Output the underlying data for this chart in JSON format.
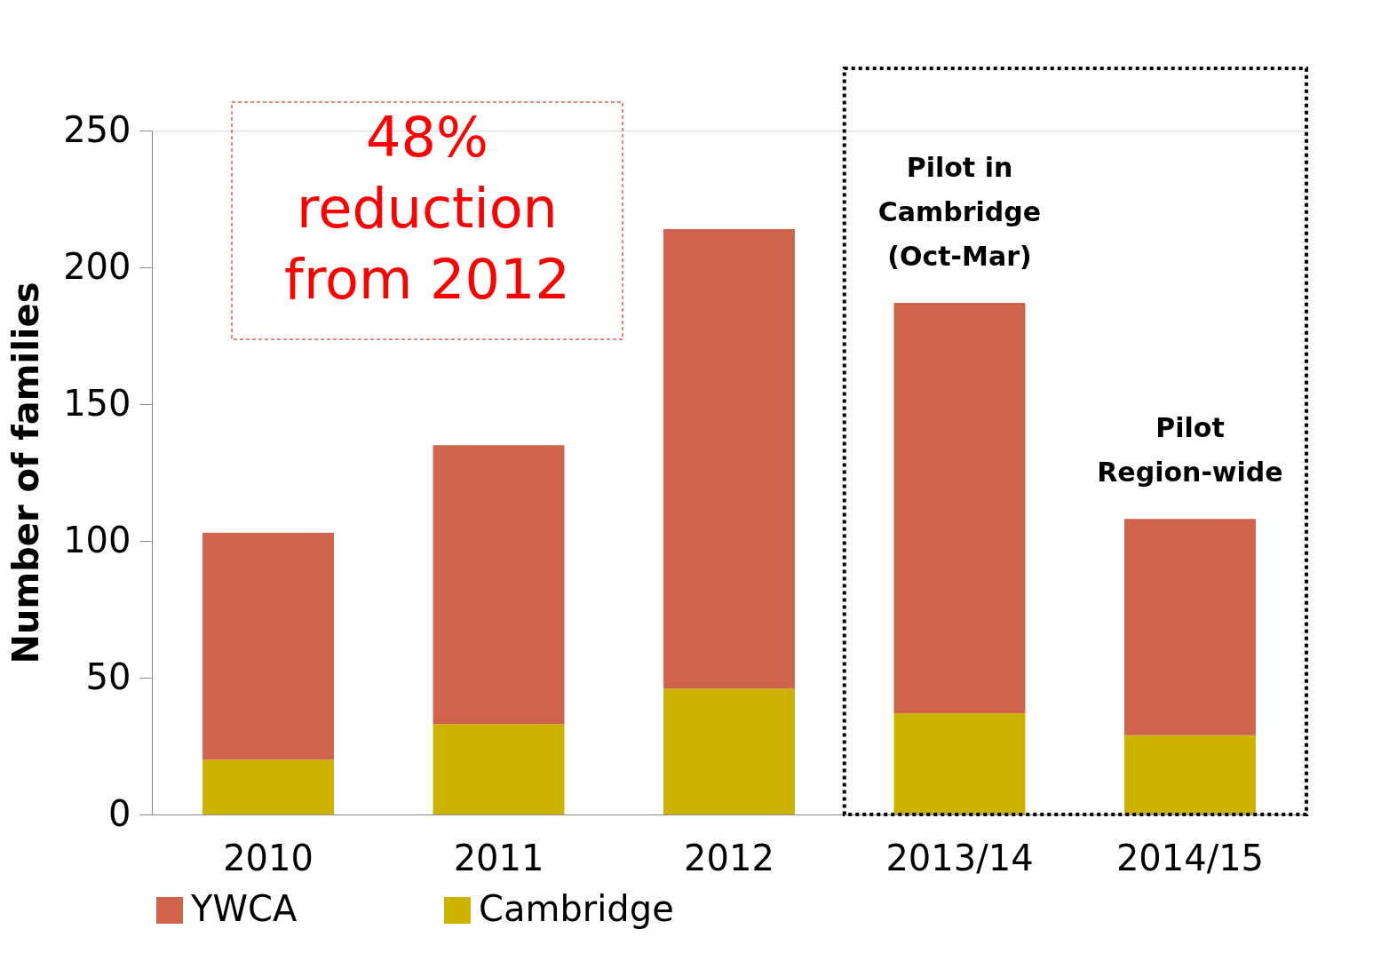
{
  "chart_data": {
    "type": "bar",
    "stacked": true,
    "ylabel": "Number of families",
    "categories": [
      "2010",
      "2011",
      "2012",
      "2013/14",
      "2014/15"
    ],
    "series": [
      {
        "name": "Cambridge",
        "color": "#cbb300",
        "values": [
          20,
          33,
          46,
          37,
          29
        ]
      },
      {
        "name": "YWCA",
        "color": "#d0634b",
        "values": [
          83,
          102,
          168,
          150,
          79
        ]
      }
    ],
    "ylim": [
      0,
      250
    ],
    "yticks": [
      0,
      50,
      100,
      150,
      200,
      250
    ],
    "grid": false,
    "legend": "bottom",
    "annotations": [
      "48%\nreduction\nfrom 2012",
      {
        "text": "Pilot in\nCambridge\n(Oct-Mar)",
        "x": "2013/14",
        "y": 187
      },
      {
        "text": "Pilot\nRegion-wide",
        "x": "2014/15",
        "y": 108
      }
    ]
  }
}
